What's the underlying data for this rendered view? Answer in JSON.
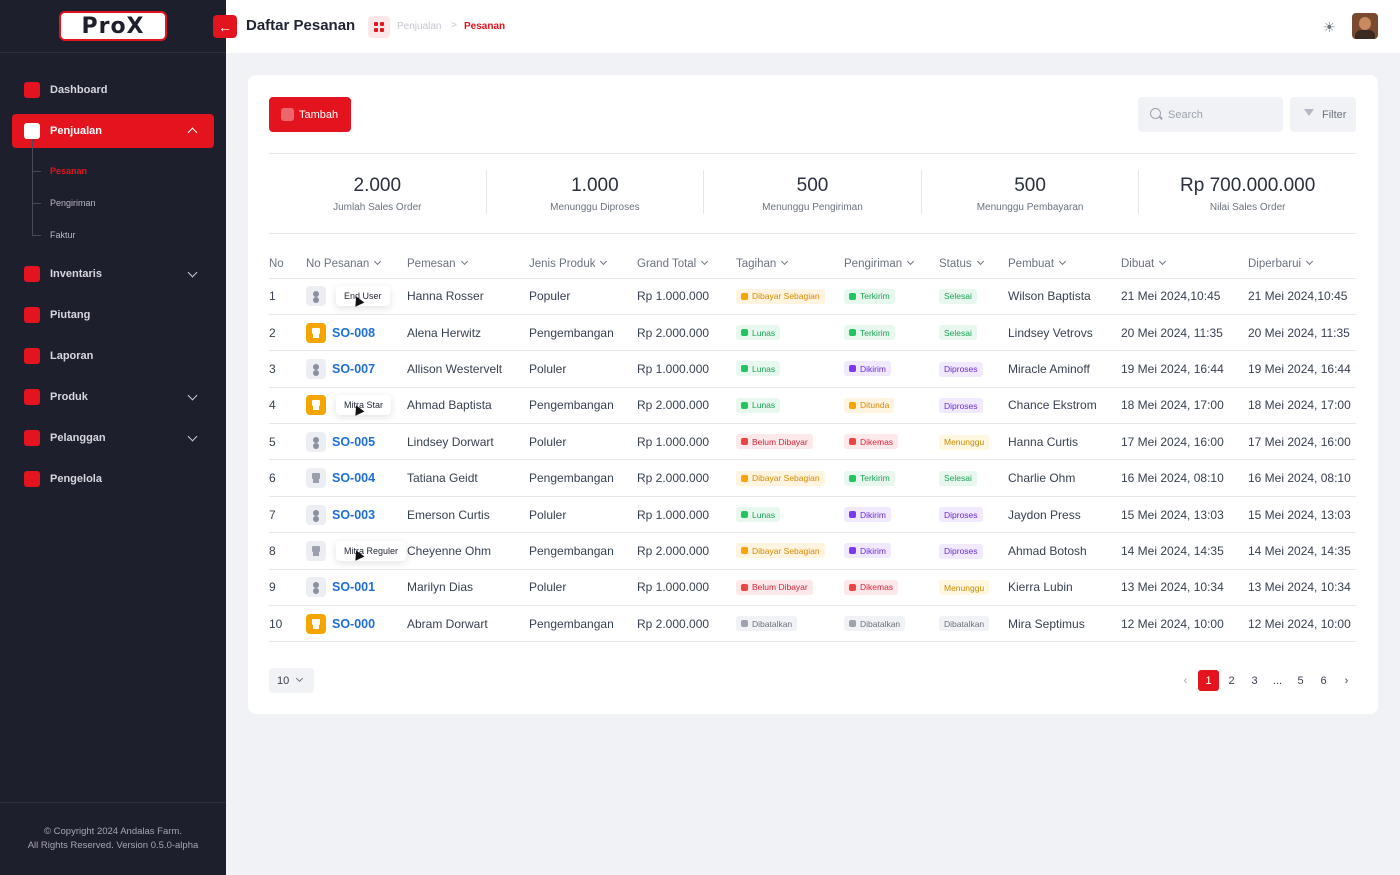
{
  "app": {
    "logo": "ProX",
    "copyright": "© Copyright 2024 Andalas Farm.",
    "version": "All Rights Reserved. Version 0.5.0-alpha"
  },
  "sidebar": {
    "dashboard": "Dashboard",
    "penjualan": "Penjualan",
    "sub": [
      "Pesanan",
      "Pengiriman",
      "Faktur"
    ],
    "inventaris": "Inventaris",
    "piutang": "Piutang",
    "laporan": "Laporan",
    "produk": "Produk",
    "pelanggan": "Pelanggan",
    "pengelola": "Pengelola"
  },
  "header": {
    "back_icon": "←",
    "title": "Daftar Pesanan",
    "breadcrumb_parent": "Penjualan",
    "breadcrumb_sep": ">",
    "breadcrumb_current": "Pesanan",
    "sun_icon": "☀"
  },
  "toolbar": {
    "add_label": "Tambah",
    "search_placeholder": "Search",
    "filter_label": "Filter"
  },
  "stats": [
    {
      "value": "2.000",
      "label": "Jumlah Sales Order"
    },
    {
      "value": "1.000",
      "label": "Menunggu Diproses"
    },
    {
      "value": "500",
      "label": "Menunggu Pengiriman"
    },
    {
      "value": "500",
      "label": "Menunggu Pembayaran"
    },
    {
      "value": "Rp 700.000.000",
      "label": "Nilai Sales Order"
    }
  ],
  "table": {
    "headers": [
      "No",
      "No Pesanan",
      "Pemesan",
      "Jenis Produk",
      "Grand Total",
      "Tagihan",
      "Pengiriman",
      "Status",
      "Pembuat",
      "Dibuat",
      "Diperbarui"
    ],
    "rows": [
      {
        "no": "1",
        "so": "",
        "tip": "End User",
        "pemesan": "Hanna Rosser",
        "jenis": "Populer",
        "total": "Rp 1.000.000",
        "tagihan": "Dibayar Sebagian",
        "kirim": "Terkirim",
        "status": "Selesai",
        "pembuat": "Wilson Baptista",
        "dibuat": "21 Mei 2024,10:45",
        "diperbarui": "21 Mei 2024,10:45"
      },
      {
        "no": "2",
        "so": "SO-008",
        "tip": "",
        "pemesan": "Alena Herwitz",
        "jenis": "Pengembangan",
        "total": "Rp 2.000.000",
        "tagihan": "Lunas",
        "kirim": "Terkirim",
        "status": "Selesai",
        "pembuat": "Lindsey Vetrovs",
        "dibuat": "20 Mei 2024, 11:35",
        "diperbarui": "20 Mei 2024, 11:35"
      },
      {
        "no": "3",
        "so": "SO-007",
        "tip": "",
        "pemesan": "Allison Westervelt",
        "jenis": "Poluler",
        "total": "Rp 1.000.000",
        "tagihan": "Lunas",
        "kirim": "Dikirim",
        "status": "Diproses",
        "pembuat": "Miracle Aminoff",
        "dibuat": "19 Mei 2024, 16:44",
        "diperbarui": "19 Mei 2024, 16:44"
      },
      {
        "no": "4",
        "so": "",
        "tip": "Mitra Star",
        "pemesan": "Ahmad Baptista",
        "jenis": "Pengembangan",
        "total": "Rp 2.000.000",
        "tagihan": "Lunas",
        "kirim": "Ditunda",
        "status": "Diproses",
        "pembuat": "Chance Ekstrom",
        "dibuat": "18 Mei 2024, 17:00",
        "diperbarui": "18 Mei 2024, 17:00"
      },
      {
        "no": "5",
        "so": "SO-005",
        "tip": "",
        "pemesan": "Lindsey Dorwart",
        "jenis": "Poluler",
        "total": "Rp 1.000.000",
        "tagihan": "Belum Dibayar",
        "kirim": "Dikemas",
        "status": "Menunggu",
        "pembuat": "Hanna Curtis",
        "dibuat": "17 Mei 2024, 16:00",
        "diperbarui": "17 Mei 2024, 16:00"
      },
      {
        "no": "6",
        "so": "SO-004",
        "tip": "",
        "pemesan": "Tatiana Geidt",
        "jenis": "Pengembangan",
        "total": "Rp 2.000.000",
        "tagihan": "Dibayar Sebagian",
        "kirim": "Terkirim",
        "status": "Selesai",
        "pembuat": "Charlie Ohm",
        "dibuat": "16 Mei 2024, 08:10",
        "diperbarui": "16 Mei 2024, 08:10"
      },
      {
        "no": "7",
        "so": "SO-003",
        "tip": "",
        "pemesan": "Emerson Curtis",
        "jenis": "Poluler",
        "total": "Rp 1.000.000",
        "tagihan": "Lunas",
        "kirim": "Dikirim",
        "status": "Diproses",
        "pembuat": "Jaydon Press",
        "dibuat": "15 Mei 2024, 13:03",
        "diperbarui": "15 Mei 2024, 13:03"
      },
      {
        "no": "8",
        "so": "",
        "tip": "Mitra Reguler",
        "pemesan": "Cheyenne Ohm",
        "jenis": "Pengembangan",
        "total": "Rp 2.000.000",
        "tagihan": "Dibayar Sebagian",
        "kirim": "Dikirim",
        "status": "Diproses",
        "pembuat": "Ahmad Botosh",
        "dibuat": "14 Mei 2024, 14:35",
        "diperbarui": "14 Mei 2024, 14:35"
      },
      {
        "no": "9",
        "so": "SO-001",
        "tip": "",
        "pemesan": "Marilyn Dias",
        "jenis": "Poluler",
        "total": "Rp 1.000.000",
        "tagihan": "Belum Dibayar",
        "kirim": "Dikemas",
        "status": "Menunggu",
        "pembuat": "Kierra Lubin",
        "dibuat": "13 Mei 2024, 10:34",
        "diperbarui": "13 Mei 2024, 10:34"
      },
      {
        "no": "10",
        "so": "SO-000",
        "tip": "",
        "pemesan": "Abram Dorwart",
        "jenis": "Pengembangan",
        "total": "Rp 2.000.000",
        "tagihan": "Dibatalkan",
        "kirim": "Dibatalkan",
        "status": "Dibatalkan",
        "pembuat": "Mira Septimus",
        "dibuat": "12 Mei 2024, 10:00",
        "diperbarui": "12 Mei 2024, 10:00"
      }
    ]
  },
  "pagination": {
    "page_size": "10",
    "prev": "‹",
    "pages": [
      "1",
      "2",
      "3",
      "...",
      "5",
      "6"
    ],
    "next": "›"
  }
}
